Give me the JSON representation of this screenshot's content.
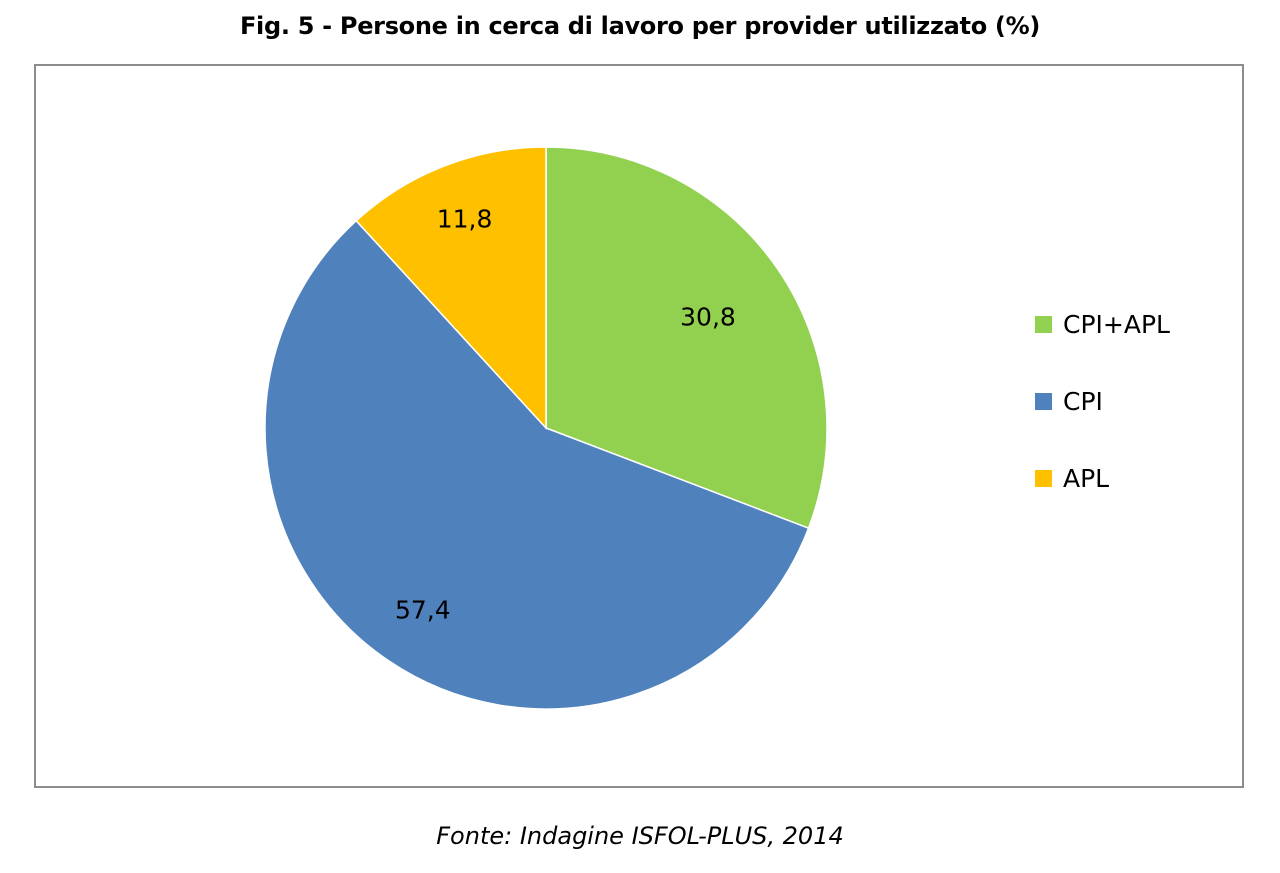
{
  "title": "Fig. 5 - Persone in cerca di lavoro per provider utilizzato (%)",
  "source": "Fonte: Indagine ISFOL-PLUS, 2014",
  "chart_data": {
    "type": "pie",
    "categories": [
      "CPI+APL",
      "CPI",
      "APL"
    ],
    "values": [
      30.8,
      57.4,
      11.8
    ],
    "data_labels": [
      "30,8",
      "57,4",
      "11,8"
    ],
    "colors": [
      "#92D050",
      "#4F81BD",
      "#FFC000"
    ],
    "legend": {
      "placement": "right",
      "items": [
        "CPI+APL",
        "CPI",
        "APL"
      ]
    },
    "start_angle": "top",
    "direction": "clockwise"
  }
}
